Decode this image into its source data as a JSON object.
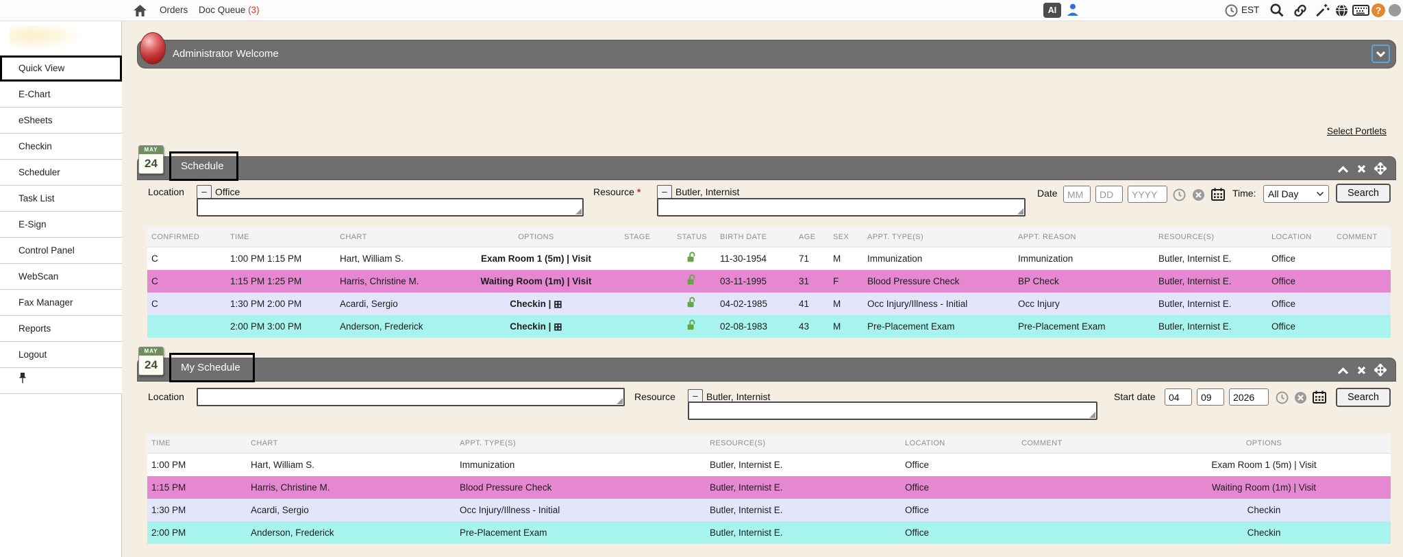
{
  "colors": {
    "page_bg": "#f4efe2",
    "bar_gray": "#6f6f6f",
    "row_white": "#ffffff",
    "row_pink": "#e687d1",
    "row_lavender": "#e3e6fb",
    "row_cyan": "#a7f3ee",
    "lock_green": "#64a545",
    "help_orange": "#e2882e",
    "person_blue": "#2f6fd6",
    "count_red": "#c5392a"
  },
  "icons": {
    "minus": "–",
    "plus_box": "⊞"
  },
  "topnav": {
    "orders": "Orders",
    "doc_queue": "Doc Queue",
    "doc_queue_count": "(3)",
    "ai_badge": "AI",
    "timezone": "EST",
    "help": "?"
  },
  "sidebar": {
    "items": [
      {
        "label": "Quick View",
        "active": true
      },
      {
        "label": "E-Chart",
        "active": false
      },
      {
        "label": "eSheets",
        "active": false
      },
      {
        "label": "Checkin",
        "active": false
      },
      {
        "label": "Scheduler",
        "active": false
      },
      {
        "label": "Task List",
        "active": false
      },
      {
        "label": "E-Sign",
        "active": false
      },
      {
        "label": "Control Panel",
        "active": false
      },
      {
        "label": "WebScan",
        "active": false
      },
      {
        "label": "Fax Manager",
        "active": false
      },
      {
        "label": "Reports",
        "active": false
      },
      {
        "label": "Logout",
        "active": false
      }
    ]
  },
  "welcome": {
    "title": "Administrator Welcome"
  },
  "select_portlets_label": "Select Portlets",
  "calendar_icon": {
    "month": "MAY",
    "day": "24"
  },
  "schedule": {
    "title": "Schedule",
    "filters": {
      "location_label": "Location",
      "location_value": "Office",
      "location_input_value": "",
      "resource_label": "Resource",
      "required_mark": "*",
      "resource_value": "Butler, Internist",
      "resource_input_value": "",
      "date_label": "Date",
      "mm_placeholder": "MM",
      "dd_placeholder": "DD",
      "yyyy_placeholder": "YYYY",
      "time_label": "Time:",
      "time_value": "All Day",
      "search_label": "Search"
    },
    "table": {
      "headers": [
        "CONFIRMED",
        "TIME",
        "CHART",
        "OPTIONS",
        "STAGE",
        "STATUS",
        "BIRTH DATE",
        "AGE",
        "SEX",
        "APPT. TYPE(S)",
        "APPT. REASON",
        "RESOURCE(S)",
        "LOCATION",
        "COMMENT"
      ],
      "rows": [
        {
          "confirmed": "C",
          "time": "1:00 PM 1:15 PM",
          "chart": "Hart, William S.",
          "options": "Exam Room 1 (5m) | Visit",
          "options_plus": false,
          "stage": "",
          "status": "unlocked",
          "birth_date": "11-30-1954",
          "age": "71",
          "sex": "M",
          "appt_types": "Immunization",
          "appt_reason": "Immunization",
          "resources": "Butler, Internist E.",
          "location": "Office",
          "comment": "",
          "bg": "#ffffff"
        },
        {
          "confirmed": "C",
          "time": "1:15 PM 1:25 PM",
          "chart": "Harris, Christine M.",
          "options": "Waiting Room (1m) | Visit",
          "options_plus": false,
          "stage": "",
          "status": "unlocked",
          "birth_date": "03-11-1995",
          "age": "31",
          "sex": "F",
          "appt_types": "Blood Pressure Check",
          "appt_reason": "BP Check",
          "resources": "Butler, Internist E.",
          "location": "Office",
          "comment": "",
          "bg": "#e687d1"
        },
        {
          "confirmed": "C",
          "time": "1:30 PM 2:00 PM",
          "chart": "Acardi, Sergio",
          "options": "Checkin |",
          "options_plus": true,
          "stage": "",
          "status": "unlocked",
          "birth_date": "04-02-1985",
          "age": "41",
          "sex": "M",
          "appt_types": "Occ Injury/Illness - Initial",
          "appt_reason": "Occ Injury",
          "resources": "Butler, Internist E.",
          "location": "Office",
          "comment": "",
          "bg": "#e3e6fb"
        },
        {
          "confirmed": "",
          "time": "2:00 PM 3:00 PM",
          "chart": "Anderson, Frederick",
          "options": "Checkin |",
          "options_plus": true,
          "stage": "",
          "status": "unlocked",
          "birth_date": "02-08-1983",
          "age": "43",
          "sex": "M",
          "appt_types": "Pre-Placement Exam",
          "appt_reason": "Pre-Placement Exam",
          "resources": "Butler, Internist E.",
          "location": "Office",
          "comment": "",
          "bg": "#a7f3ee"
        }
      ]
    }
  },
  "my_schedule": {
    "title": "My Schedule",
    "filters": {
      "location_label": "Location",
      "location_input_value": "",
      "resource_label": "Resource",
      "resource_value": "Butler, Internist",
      "resource_input_value": "",
      "start_date_label": "Start date",
      "mm_value": "04",
      "dd_value": "09",
      "yyyy_value": "2026",
      "search_label": "Search"
    },
    "table": {
      "headers": [
        "TIME",
        "CHART",
        "APPT. TYPE(S)",
        "RESOURCE(S)",
        "LOCATION",
        "COMMENT",
        "OPTIONS"
      ],
      "rows": [
        {
          "time": "1:00 PM",
          "chart": "Hart, William S.",
          "appt_types": "Immunization",
          "resources": "Butler, Internist E.",
          "location": "Office",
          "comment": "",
          "options": "Exam Room 1 (5m) | Visit",
          "bg": "#ffffff"
        },
        {
          "time": "1:15 PM",
          "chart": "Harris, Christine M.",
          "appt_types": "Blood Pressure Check",
          "resources": "Butler, Internist E.",
          "location": "Office",
          "comment": "",
          "options": "Waiting Room (1m) | Visit",
          "bg": "#e687d1"
        },
        {
          "time": "1:30 PM",
          "chart": "Acardi, Sergio",
          "appt_types": "Occ Injury/Illness - Initial",
          "resources": "Butler, Internist E.",
          "location": "Office",
          "comment": "",
          "options": "Checkin",
          "bg": "#e3e6fb"
        },
        {
          "time": "2:00 PM",
          "chart": "Anderson, Frederick",
          "appt_types": "Pre-Placement Exam",
          "resources": "Butler, Internist E.",
          "location": "Office",
          "comment": "",
          "options": "Checkin",
          "bg": "#a7f3ee"
        }
      ]
    }
  }
}
